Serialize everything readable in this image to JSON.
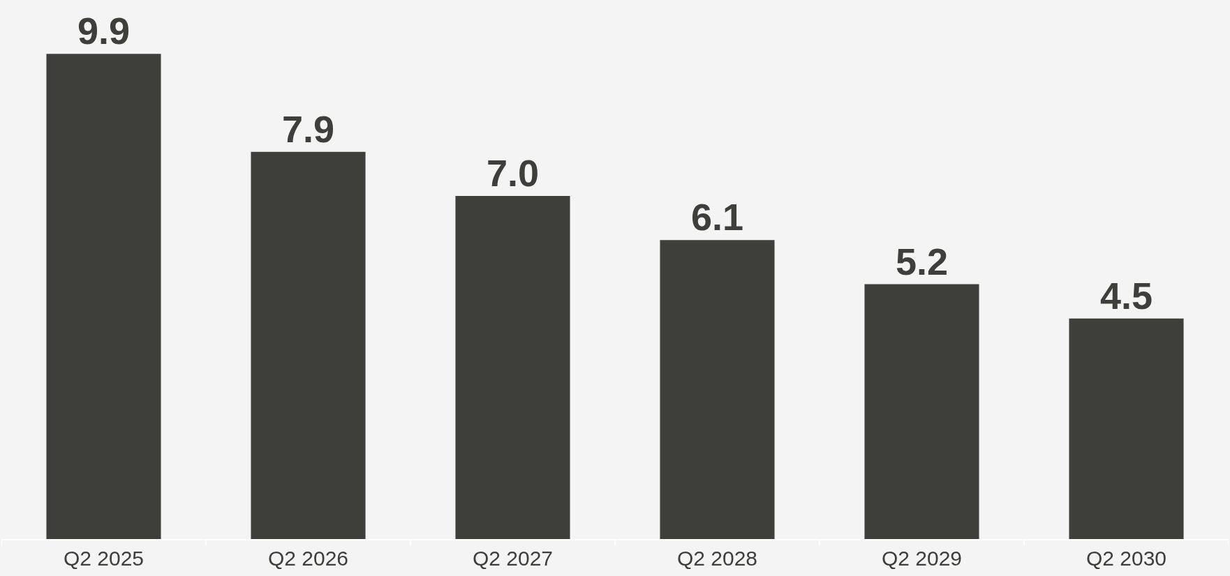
{
  "chart_data": {
    "type": "bar",
    "categories": [
      "Q2 2025",
      "Q2 2026",
      "Q2 2027",
      "Q2 2028",
      "Q2 2029",
      "Q2 2030"
    ],
    "values": [
      9.9,
      7.9,
      7.0,
      6.1,
      5.2,
      4.5
    ],
    "value_labels": [
      "9.9",
      "7.9",
      "7.0",
      "6.1",
      "5.2",
      "4.5"
    ],
    "color": "#3e3f3a",
    "ylim": [
      0,
      11
    ],
    "grid": false,
    "legend": false
  }
}
